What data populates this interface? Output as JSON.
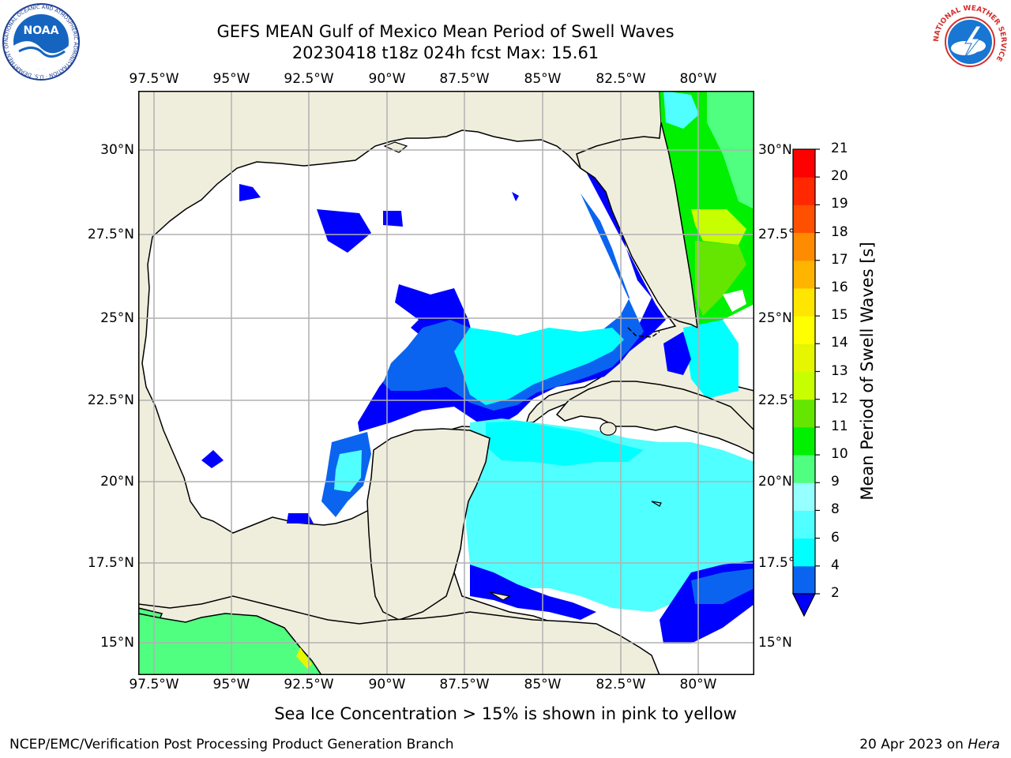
{
  "header": {
    "title_line1": "GEFS MEAN Gulf of Mexico Mean Period of Swell Waves",
    "title_line2": "20230418 t18z 024h fcst   Max: 15.61"
  },
  "logos": {
    "left_text": "NOAA",
    "left_ring": "NATIONAL OCEANIC AND ATMOSPHERIC ADMINISTRATION · U.S. DEPARTMENT OF COMMERCE",
    "right_ring": "NATIONAL WEATHER SERVICE"
  },
  "map": {
    "lon_labels": [
      "97.5°W",
      "95°W",
      "92.5°W",
      "90°W",
      "87.5°W",
      "85°W",
      "82.5°W",
      "80°W"
    ],
    "lat_labels_left": [
      "30°N",
      "27.5°N",
      "25°N",
      "22.5°N",
      "20°N",
      "17.5°N",
      "15°N"
    ],
    "lat_labels_right": [
      "30°N",
      "27.5°N",
      "25°N",
      "22.5°N",
      "20°N",
      "17.5°N",
      "15°N"
    ]
  },
  "colorbar": {
    "label": "Mean Period of Swell Waves [s]",
    "ticks": [
      "2",
      "4",
      "6",
      "8",
      "9",
      "10",
      "11",
      "12",
      "13",
      "14",
      "15",
      "16",
      "17",
      "18",
      "19",
      "20",
      "21"
    ],
    "colors": [
      "#0000ff",
      "#0a64f0",
      "#00ffff",
      "#50ffff",
      "#96ffff",
      "#50ff80",
      "#00f000",
      "#64e600",
      "#c8ff00",
      "#e6f500",
      "#ffff00",
      "#ffe600",
      "#ffb400",
      "#ff8c00",
      "#ff5000",
      "#ff2800",
      "#ff0000"
    ]
  },
  "caption": "Sea Ice Concentration > 15% is shown in pink to yellow",
  "footer": {
    "left": "NCEP/EMC/Verification Post Processing Product Generation Branch",
    "right_date": "20 Apr 2023 on ",
    "right_host": "Hera"
  }
}
